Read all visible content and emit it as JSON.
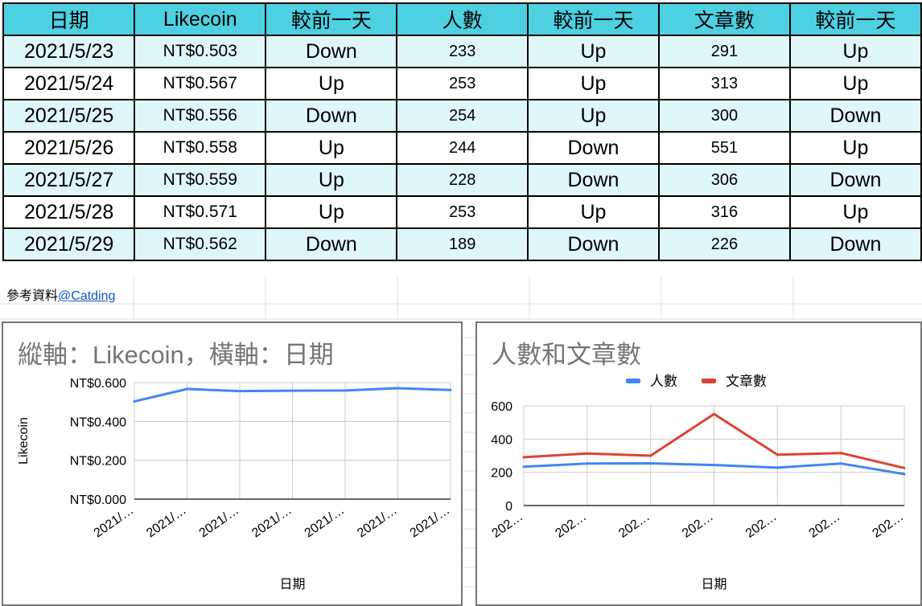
{
  "table": {
    "headers": [
      "日期",
      "Likecoin",
      "較前一天",
      "人數",
      "較前一天",
      "文章數",
      "較前一天"
    ],
    "rows": [
      [
        "2021/5/23",
        "NT$0.503",
        "Down",
        "233",
        "Up",
        "291",
        "Up"
      ],
      [
        "2021/5/24",
        "NT$0.567",
        "Up",
        "253",
        "Up",
        "313",
        "Up"
      ],
      [
        "2021/5/25",
        "NT$0.556",
        "Down",
        "254",
        "Up",
        "300",
        "Down"
      ],
      [
        "2021/5/26",
        "NT$0.558",
        "Up",
        "244",
        "Down",
        "551",
        "Up"
      ],
      [
        "2021/5/27",
        "NT$0.559",
        "Up",
        "228",
        "Down",
        "306",
        "Down"
      ],
      [
        "2021/5/28",
        "NT$0.571",
        "Up",
        "253",
        "Up",
        "316",
        "Up"
      ],
      [
        "2021/5/29",
        "NT$0.562",
        "Down",
        "189",
        "Down",
        "226",
        "Down"
      ]
    ],
    "header_color": "#4dd0e1",
    "band_color": "#e0f7fa"
  },
  "source": {
    "label": "參考資料",
    "link_text": "@Catding"
  },
  "chart_data": [
    {
      "type": "line",
      "title": "縱軸：Likecoin，橫軸：日期",
      "xlabel": "日期",
      "ylabel": "Likecoin",
      "categories": [
        "2021/…",
        "2021/…",
        "2021/…",
        "2021/…",
        "2021/…",
        "2021/…",
        "2021/…"
      ],
      "series": [
        {
          "name": "",
          "color": "#4285f4",
          "values": [
            0.503,
            0.567,
            0.556,
            0.558,
            0.559,
            0.571,
            0.562
          ]
        }
      ],
      "ylim": [
        0,
        0.6
      ],
      "yticks": [
        "NT$0.000",
        "NT$0.200",
        "NT$0.400",
        "NT$0.600"
      ],
      "grid": true,
      "legend": "none"
    },
    {
      "type": "line",
      "title": "人數和文章數",
      "xlabel": "日期",
      "ylabel": "",
      "categories": [
        "202…",
        "202…",
        "202…",
        "202…",
        "202…",
        "202…",
        "202…"
      ],
      "series": [
        {
          "name": "人數",
          "color": "#4285f4",
          "values": [
            233,
            253,
            254,
            244,
            228,
            253,
            189
          ]
        },
        {
          "name": "文章數",
          "color": "#db4437",
          "values": [
            291,
            313,
            300,
            551,
            306,
            316,
            226
          ]
        }
      ],
      "ylim": [
        0,
        600
      ],
      "yticks": [
        "0",
        "200",
        "400",
        "600"
      ],
      "grid": true,
      "legend": "top"
    }
  ]
}
